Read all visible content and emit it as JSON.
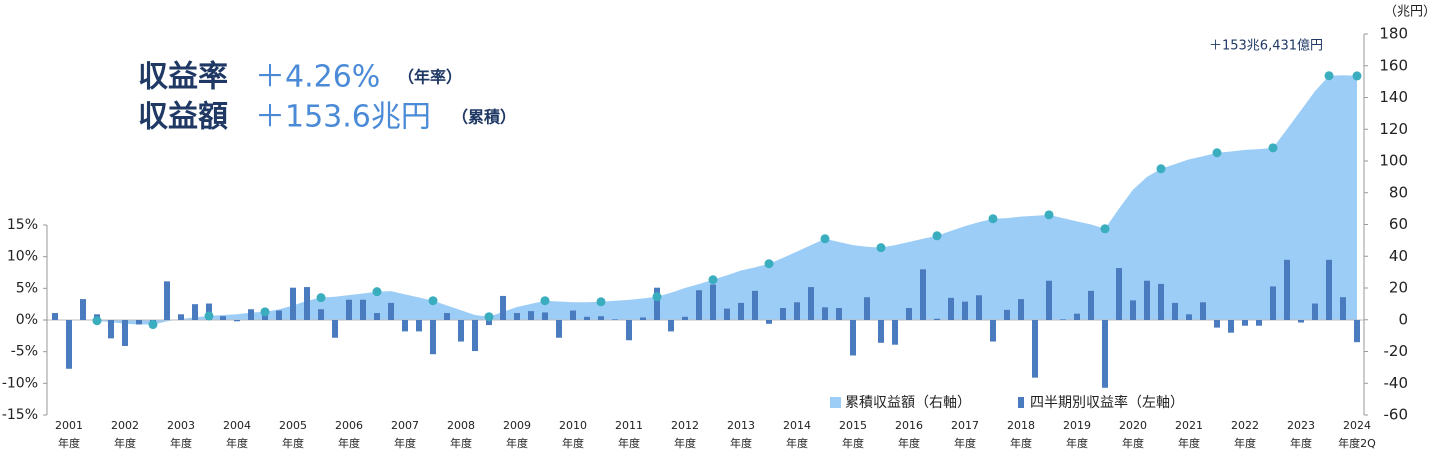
{
  "headline": {
    "rows": [
      {
        "label": "収益率",
        "value": "＋4.26%",
        "note": "（年率）"
      },
      {
        "label": "収益額",
        "value": "＋153.6兆円",
        "note": "（累積）"
      }
    ]
  },
  "chart_data": {
    "type": "bar",
    "categories": [
      null,
      "2001年度",
      null,
      null,
      null,
      "2002年度",
      null,
      null,
      null,
      "2003年度",
      null,
      null,
      null,
      "2004年度",
      null,
      null,
      null,
      "2005年度",
      null,
      null,
      null,
      "2006年度",
      null,
      null,
      null,
      "2007年度",
      null,
      null,
      null,
      "2008年度",
      null,
      null,
      null,
      "2009年度",
      null,
      null,
      null,
      "2010年度",
      null,
      null,
      null,
      "2011年度",
      null,
      null,
      null,
      "2012年度",
      null,
      null,
      null,
      "2013年度",
      null,
      null,
      null,
      "2014年度",
      null,
      null,
      null,
      "2015年度",
      null,
      null,
      null,
      "2016年度",
      null,
      null,
      null,
      "2017年度",
      null,
      null,
      null,
      "2018年度",
      null,
      null,
      null,
      "2019年度",
      null,
      null,
      null,
      "2020年度",
      null,
      null,
      null,
      "2021年度",
      null,
      null,
      null,
      "2022年度",
      null,
      null,
      null,
      "2023年度",
      null,
      null,
      null,
      "2024年度2Q"
    ],
    "series": [
      {
        "name": "四半期別収益率（左軸）",
        "type": "bar",
        "color": "#4a7bbf",
        "values": [
          1.1,
          -7.7,
          3.3,
          0.9,
          -2.9,
          -4.1,
          -0.7,
          -0.9,
          6.1,
          0.9,
          2.5,
          2.6,
          0.6,
          -0.2,
          1.7,
          1.8,
          1.5,
          5.1,
          5.2,
          1.7,
          -2.8,
          3.2,
          3.2,
          1.1,
          2.7,
          -1.8,
          -1.8,
          -5.4,
          1.1,
          -3.4,
          -4.9,
          -0.8,
          3.8,
          1.1,
          1.4,
          1.2,
          -2.8,
          1.5,
          0.5,
          0.6,
          0.1,
          -3.2,
          0.4,
          5.1,
          -1.8,
          0.5,
          4.7,
          5.6,
          1.8,
          2.7,
          4.6,
          -0.6,
          1.9,
          2.8,
          5.2,
          2.0,
          1.9,
          -5.6,
          3.6,
          -3.6,
          -3.9,
          1.9,
          8.0,
          0.2,
          3.5,
          2.9,
          3.9,
          -3.4,
          1.6,
          3.3,
          -9.1,
          6.2,
          0.1,
          1.0,
          4.6,
          -10.7,
          8.2,
          3.1,
          6.2,
          5.7,
          2.7,
          0.9,
          2.8,
          -1.2,
          -2.0,
          -0.9,
          -0.9,
          5.3,
          9.5,
          -0.4,
          2.6,
          9.5,
          3.6,
          -3.5
        ]
      },
      {
        "name": "累積収益額（右軸）",
        "type": "area",
        "axis": "y2",
        "color": "#9ccdf7",
        "marker_color": "#3aaebf",
        "values": [
          0.5,
          -0.5,
          0.3,
          -0.6,
          -1.5,
          -2.5,
          -3.0,
          -3.0,
          -1.0,
          0.5,
          1.5,
          2.4,
          3.0,
          3.5,
          4.5,
          5.0,
          6.5,
          9,
          12,
          13.9,
          14.5,
          15.5,
          16.5,
          17.7,
          18,
          16,
          14,
          12.0,
          9,
          6,
          3,
          1.9,
          5,
          8,
          10,
          12.0,
          11.5,
          11,
          11,
          11.3,
          12,
          12.5,
          13.5,
          14.5,
          17,
          20,
          22.5,
          25.2,
          28,
          31,
          33,
          35.3,
          39,
          43,
          47,
          51.0,
          49,
          47,
          46,
          45.4,
          47,
          49,
          51,
          52.9,
          56,
          59,
          61.5,
          63.6,
          64,
          65,
          65.5,
          66.1,
          64,
          62,
          60,
          57.3,
          70,
          82,
          90,
          95.1,
          98,
          101,
          103,
          105.2,
          106,
          107,
          107.5,
          108.3,
          120,
          132,
          144,
          153.7,
          154.0,
          153.6
        ]
      }
    ],
    "ylim": [
      -15,
      15
    ],
    "yticks": [
      {
        "value": -15,
        "label": "-15%"
      },
      {
        "value": -10,
        "label": "-10%"
      },
      {
        "value": -5,
        "label": "-5%"
      },
      {
        "value": 0,
        "label": "0%"
      },
      {
        "value": 5,
        "label": "5%"
      },
      {
        "value": 10,
        "label": "10%"
      },
      {
        "value": 15,
        "label": "15%"
      }
    ],
    "y2lim": [
      -60,
      180
    ],
    "y2ticks": [
      -60,
      -40,
      -20,
      0,
      20,
      40,
      60,
      80,
      100,
      120,
      140,
      160,
      180
    ],
    "y2_unit": "（兆円）",
    "annotation": "＋153兆6,431億円",
    "legend": "bottom-right",
    "grid": false
  }
}
